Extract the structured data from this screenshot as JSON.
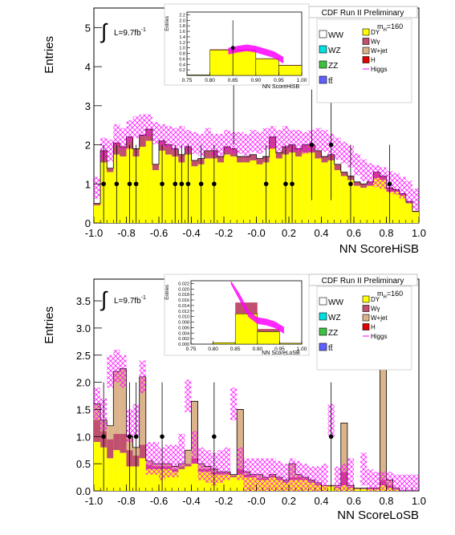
{
  "colors": {
    "DY": "#ffff00",
    "Wgamma": "#c0506e",
    "Wjet": "#dcb48c",
    "H": "#e00000",
    "higgs": "#ff00ff",
    "data": "#000000",
    "WW": "#ffffff",
    "WZ": "#00e0e0",
    "ZZ": "#40c040",
    "tt": "#6060ff"
  },
  "chart_data": [
    {
      "id": "hisb",
      "type": "bar",
      "header": "CDF Run II Preliminary",
      "lumi_prefix": "L=9.7fb",
      "lumi_sup": "-1",
      "mass_label": "m",
      "mass_sub": "H",
      "mass_value": "=160",
      "xlabel": "NN ScoreHiSB",
      "ylabel": "Entries",
      "xlim": [
        -1.0,
        1.0
      ],
      "ylim": [
        0,
        5.5
      ],
      "xticks": [
        "-1.0",
        "-0.8",
        "-0.6",
        "-0.4",
        "-0.2",
        "-0.0",
        "0.2",
        "0.4",
        "0.6",
        "0.8",
        "1.0"
      ],
      "yticks": [
        "0",
        "1",
        "2",
        "3",
        "4",
        "5"
      ],
      "ytick_values": [
        0,
        1,
        2,
        3,
        4,
        5
      ],
      "legend": [
        "WW",
        "WZ",
        "ZZ",
        "tt̄",
        "DY",
        "Wγ",
        "W+jet",
        "H",
        "Higgs"
      ],
      "bin_width": 0.04,
      "bin_low": [
        -1.0,
        -0.96,
        -0.92,
        -0.88,
        -0.84,
        -0.8,
        -0.76,
        -0.72,
        -0.68,
        -0.64,
        -0.6,
        -0.56,
        -0.52,
        -0.48,
        -0.44,
        -0.4,
        -0.36,
        -0.32,
        -0.28,
        -0.24,
        -0.2,
        -0.16,
        -0.12,
        -0.08,
        -0.04,
        0.0,
        0.04,
        0.08,
        0.12,
        0.16,
        0.2,
        0.24,
        0.28,
        0.32,
        0.36,
        0.4,
        0.44,
        0.48,
        0.52,
        0.56,
        0.6,
        0.64,
        0.68,
        0.72,
        0.76,
        0.8,
        0.84,
        0.88,
        0.92,
        0.96
      ],
      "background_total": [
        0.5,
        1.85,
        1.4,
        2.05,
        1.95,
        2.2,
        1.9,
        2.25,
        2.4,
        1.5,
        2.1,
        2.0,
        1.9,
        1.75,
        1.95,
        1.6,
        1.65,
        1.85,
        1.85,
        1.7,
        1.95,
        1.9,
        1.7,
        1.7,
        1.75,
        1.65,
        1.7,
        2.2,
        1.8,
        1.95,
        2.0,
        1.9,
        2.0,
        2.0,
        1.85,
        1.7,
        1.75,
        1.5,
        1.3,
        1.2,
        1.05,
        1.0,
        1.05,
        1.3,
        1.2,
        0.9,
        0.85,
        0.75,
        0.55,
        0.3
      ],
      "dy_component": [
        0.45,
        1.55,
        1.3,
        1.75,
        1.7,
        1.9,
        1.7,
        1.95,
        2.1,
        1.35,
        1.85,
        1.75,
        1.7,
        1.55,
        1.75,
        1.45,
        1.5,
        1.65,
        1.65,
        1.55,
        1.75,
        1.7,
        1.55,
        1.55,
        1.6,
        1.5,
        1.55,
        1.9,
        1.65,
        1.75,
        1.8,
        1.7,
        1.8,
        1.8,
        1.65,
        1.55,
        1.6,
        1.35,
        1.2,
        1.1,
        0.95,
        0.9,
        0.95,
        1.15,
        1.1,
        0.8,
        0.8,
        0.7,
        0.5,
        0.28
      ],
      "higgs_band_center": [
        0.9,
        1.9,
        1.85,
        2.25,
        2.15,
        2.35,
        2.45,
        2.5,
        2.5,
        2.3,
        2.25,
        2.2,
        2.15,
        2.2,
        2.1,
        2.05,
        2.0,
        2.15,
        2.0,
        2.0,
        2.1,
        2.05,
        2.05,
        2.0,
        2.1,
        2.05,
        2.15,
        2.2,
        2.1,
        2.2,
        2.1,
        2.1,
        2.05,
        2.1,
        2.15,
        2.1,
        2.0,
        1.9,
        1.8,
        1.7,
        1.5,
        1.35,
        1.25,
        1.2,
        1.15,
        1.05,
        1.0,
        0.9,
        0.8,
        0.6
      ],
      "higgs_band_halfwidth": 0.28,
      "data_x": [
        -0.94,
        -0.86,
        -0.78,
        -0.74,
        -0.58,
        -0.5,
        -0.46,
        -0.42,
        -0.34,
        -0.26,
        -0.14,
        0.06,
        0.18,
        0.22,
        0.34,
        0.46,
        0.58,
        0.82
      ],
      "data_y": [
        1,
        1,
        1,
        1,
        1,
        1,
        1,
        1,
        1,
        1,
        4,
        1,
        1,
        1,
        2,
        2,
        1,
        1
      ],
      "inset": {
        "xlabel": "NN ScoreHiSB",
        "ylabel": "Entries",
        "xlim": [
          0.75,
          1.0
        ],
        "ylim": [
          0,
          2.3
        ],
        "xticks": [
          "0.75",
          "0.80",
          "0.85",
          "0.90",
          "0.95",
          "1.00"
        ],
        "xtick_values": [
          0.75,
          0.8,
          0.85,
          0.9,
          0.95,
          1.0
        ],
        "yticks": [
          "0.2",
          "0.4",
          "0.6",
          "0.8",
          "1.0",
          "1.2",
          "1.4",
          "1.6",
          "1.8",
          "2.0",
          "2.2"
        ],
        "ytick_values": [
          0.2,
          0.4,
          0.6,
          0.8,
          1.0,
          1.2,
          1.4,
          1.6,
          1.8,
          2.0,
          2.2
        ],
        "bin_edges": [
          0.75,
          0.8,
          0.9,
          0.95,
          1.0
        ],
        "background_total": [
          0.02,
          0.95,
          0.62,
          0.38
        ],
        "dy_component": [
          0.02,
          0.92,
          0.6,
          0.36
        ],
        "band_x": [
          0.84,
          0.86,
          0.88,
          0.9,
          0.92,
          0.94,
          0.96
        ],
        "band_y": [
          0.88,
          0.95,
          1.0,
          0.95,
          0.85,
          0.75,
          0.55
        ],
        "band_halfwidth": 0.12,
        "data_x": [
          0.85
        ],
        "data_y": [
          1.0
        ],
        "data_err": [
          1.0
        ]
      }
    },
    {
      "id": "losb",
      "type": "bar",
      "header": "CDF Run II Preliminary",
      "lumi_prefix": "L=9.7fb",
      "lumi_sup": "-1",
      "mass_label": "m",
      "mass_sub": "H",
      "mass_value": "=160",
      "xlabel": "NN ScoreLoSB",
      "ylabel": "Entries",
      "xlim": [
        -1.0,
        1.0
      ],
      "ylim": [
        0,
        3.9
      ],
      "xticks": [
        "-1.0",
        "-0.8",
        "-0.6",
        "-0.4",
        "-0.2",
        "-0.0",
        "0.2",
        "0.4",
        "0.6",
        "0.8",
        "1.0"
      ],
      "yticks": [
        "0.0",
        "0.5",
        "1.0",
        "1.5",
        "2.0",
        "2.5",
        "3.0",
        "3.5"
      ],
      "ytick_values": [
        0,
        0.5,
        1.0,
        1.5,
        2.0,
        2.5,
        3.0,
        3.5
      ],
      "legend": [
        "WW",
        "WZ",
        "ZZ",
        "tt̄",
        "DY",
        "Wγ",
        "W+jet",
        "H",
        "Higgs"
      ],
      "bin_width": 0.04,
      "bin_low": [
        -1.0,
        -0.96,
        -0.92,
        -0.88,
        -0.84,
        -0.8,
        -0.76,
        -0.72,
        -0.68,
        -0.64,
        -0.6,
        -0.56,
        -0.52,
        -0.48,
        -0.44,
        -0.4,
        -0.36,
        -0.32,
        -0.28,
        -0.24,
        -0.2,
        -0.16,
        -0.12,
        -0.08,
        -0.04,
        0.0,
        0.04,
        0.08,
        0.12,
        0.16,
        0.2,
        0.24,
        0.28,
        0.32,
        0.36,
        0.4,
        0.44,
        0.48,
        0.52,
        0.56,
        0.6,
        0.64,
        0.68,
        0.72,
        0.76,
        0.8,
        0.84,
        0.88,
        0.92,
        0.96
      ],
      "background_total": [
        1.6,
        1.3,
        1.2,
        2.2,
        2.25,
        1.0,
        0.8,
        2.1,
        0.55,
        0.5,
        0.5,
        0.5,
        0.45,
        0.5,
        0.75,
        1.65,
        0.5,
        0.45,
        0.4,
        0.35,
        0.35,
        0.3,
        1.5,
        0.35,
        0.3,
        0.3,
        0.25,
        0.3,
        0.25,
        0.2,
        0.5,
        0.3,
        0.25,
        0.2,
        0.15,
        0.1,
        0.1,
        0.1,
        1.25,
        0.1,
        0.05,
        0.05,
        0.05,
        0.05,
        2.5,
        0.2,
        0.05,
        0.0,
        0.0,
        0.0
      ],
      "dy_component": [
        0.9,
        0.8,
        0.6,
        0.75,
        0.7,
        0.45,
        0.45,
        0.6,
        0.4,
        0.4,
        0.4,
        0.4,
        0.35,
        0.4,
        0.45,
        0.5,
        0.35,
        0.35,
        0.3,
        0.3,
        0.3,
        0.25,
        0.3,
        0.25,
        0.25,
        0.2,
        0.2,
        0.25,
        0.2,
        0.15,
        0.2,
        0.2,
        0.2,
        0.15,
        0.1,
        0.1,
        0.08,
        0.05,
        0.1,
        0.05,
        0.03,
        0.03,
        0.03,
        0.03,
        0.1,
        0.05,
        0.02,
        0.0,
        0.0,
        0.0
      ],
      "wgamma_component": [
        0.4,
        0.3,
        0.35,
        0.3,
        0.35,
        0.3,
        0.2,
        0.25,
        0.08,
        0.05,
        0.05,
        0.05,
        0.05,
        0.05,
        0.05,
        0.1,
        0.05,
        0.05,
        0.04,
        0.03,
        0.03,
        0.03,
        0.1,
        0.05,
        0.03,
        0.03,
        0.03,
        0.03,
        0.03,
        0.03,
        0.05,
        0.05,
        0.03,
        0.03,
        0.03,
        0.0,
        0.01,
        0.02,
        0.25,
        0.02,
        0.01,
        0.01,
        0.01,
        0.01,
        0.1,
        0.05,
        0.01,
        0.0,
        0.0,
        0.0
      ],
      "higgs_band_center": [
        1.6,
        1.4,
        2.2,
        2.3,
        2.2,
        1.2,
        1.3,
        2.1,
        0.6,
        0.6,
        0.5,
        0.55,
        0.55,
        0.75,
        1.75,
        0.8,
        0.5,
        0.45,
        0.4,
        0.45,
        0.5,
        1.6,
        0.5,
        0.3,
        0.3,
        0.3,
        0.3,
        0.3,
        0.25,
        0.2,
        0.3,
        0.25,
        0.2,
        0.15,
        0.15,
        0.2,
        1.3,
        0.15,
        0.2,
        0.3,
        2.55,
        0.4,
        0.1,
        0.05,
        0.05,
        0.05,
        0.0,
        0.0,
        0.0,
        0.0
      ],
      "higgs_band_halfwidth": 0.3,
      "data_x": [
        -0.94,
        -0.78,
        -0.74,
        -0.58,
        -0.26,
        0.46
      ],
      "data_y": [
        1,
        1,
        1,
        1,
        1,
        1
      ],
      "inset": {
        "xlabel": "NN ScoreLoSB",
        "ylabel": "Entries",
        "xlim": [
          0.75,
          1.0
        ],
        "ylim": [
          0,
          0.023
        ],
        "xticks": [
          "0.75",
          "0.80",
          "0.85",
          "0.90",
          "0.95",
          "1.00"
        ],
        "xtick_values": [
          0.75,
          0.8,
          0.85,
          0.9,
          0.95,
          1.0
        ],
        "yticks": [
          "0.000",
          "0.002",
          "0.004",
          "0.006",
          "0.008",
          "0.010",
          "0.012",
          "0.014",
          "0.016",
          "0.018",
          "0.020",
          "0.022"
        ],
        "ytick_values": [
          0.0,
          0.002,
          0.004,
          0.006,
          0.008,
          0.01,
          0.012,
          0.014,
          0.016,
          0.018,
          0.02,
          0.022
        ],
        "bin_edges": [
          0.75,
          0.8,
          0.85,
          0.9,
          0.95,
          1.0
        ],
        "background_total": [
          0.0,
          0.0006,
          0.0151,
          0.0055,
          0.0004
        ],
        "dy_component": [
          0.0,
          0.0005,
          0.011,
          0.0045,
          0.0003
        ],
        "band_x": [
          0.84,
          0.86,
          0.88,
          0.9,
          0.92,
          0.94,
          0.96
        ],
        "band_y": [
          0.023,
          0.017,
          0.011,
          0.0085,
          0.008,
          0.007,
          0.005
        ],
        "band_halfwidth": 0.0012,
        "data_x": [],
        "data_y": [],
        "data_err": []
      }
    }
  ]
}
